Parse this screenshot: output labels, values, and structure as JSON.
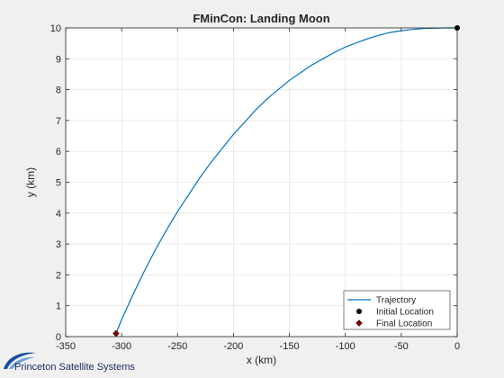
{
  "chart_data": {
    "type": "line",
    "title": "FMinCon: Landing Moon",
    "xlabel": "x (km)",
    "ylabel": "y (km)",
    "xlim": [
      -350,
      0
    ],
    "ylim": [
      0,
      10
    ],
    "xticks": [
      -350,
      -300,
      -250,
      -200,
      -150,
      -100,
      -50,
      0
    ],
    "yticks": [
      0,
      1,
      2,
      3,
      4,
      5,
      6,
      7,
      8,
      9,
      10
    ],
    "grid": true,
    "legend_position": "bottom-right",
    "series": [
      {
        "name": "Trajectory",
        "color": "#0072bd",
        "x": [
          -305,
          -300,
          -290,
          -280,
          -270,
          -260,
          -250,
          -240,
          -230,
          -220,
          -210,
          -200,
          -190,
          -180,
          -170,
          -160,
          -150,
          -140,
          -130,
          -120,
          -110,
          -100,
          -90,
          -80,
          -70,
          -60,
          -50,
          -40,
          -30,
          -20,
          -10,
          0
        ],
        "y": [
          0.1,
          0.55,
          1.35,
          2.1,
          2.8,
          3.45,
          4.05,
          4.6,
          5.15,
          5.65,
          6.1,
          6.55,
          6.95,
          7.35,
          7.7,
          8.0,
          8.3,
          8.55,
          8.8,
          9.0,
          9.2,
          9.38,
          9.52,
          9.65,
          9.76,
          9.85,
          9.91,
          9.95,
          9.98,
          9.99,
          10.0,
          10.0
        ]
      }
    ],
    "markers": [
      {
        "name": "Initial Location",
        "x": 0,
        "y": 10,
        "color": "#000000",
        "shape": "circle"
      },
      {
        "name": "Final Location",
        "x": -305,
        "y": 0.1,
        "color": "#800000",
        "shape": "diamond"
      }
    ]
  },
  "logo": {
    "text": "Princeton Satellite Systems"
  }
}
